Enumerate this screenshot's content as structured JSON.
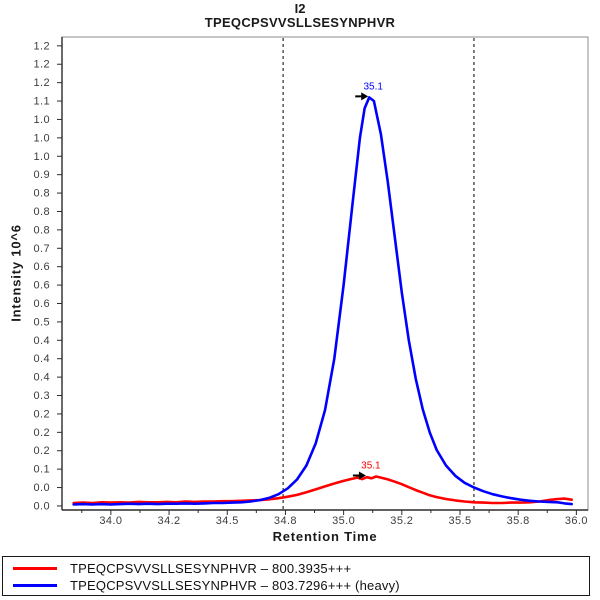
{
  "chart_data": {
    "type": "line",
    "title": "I2",
    "subtitle": "TPEQCPSVVSLLSESYNPHVR",
    "xlabel": "Retention Time",
    "ylabel": "Intensity 10^6",
    "xlim": [
      33.79,
      36.05
    ],
    "ylim": [
      -0.011,
      1.274
    ],
    "grid": false,
    "border_color": "#8c8c8c",
    "axis_color": "#2b2b2b",
    "x_axis": {
      "tick_values": [
        34.0,
        34.25,
        34.5,
        34.75,
        35.0,
        35.25,
        35.5,
        35.75,
        36.0
      ],
      "tick_labels": [
        "34.0",
        "34.2",
        "34.5",
        "34.8",
        "35.0",
        "35.2",
        "35.5",
        "35.8",
        "36.0"
      ],
      "minor_tick_values": [
        33.875,
        34.125,
        34.375,
        34.625,
        34.875,
        35.125,
        35.375,
        35.625,
        35.875
      ]
    },
    "y_axis": {
      "tick_values": [
        1.25,
        1.2,
        1.15,
        1.1,
        1.05,
        1.0,
        0.95,
        0.9,
        0.85,
        0.8,
        0.75,
        0.7,
        0.65,
        0.6,
        0.55,
        0.5,
        0.45,
        0.4,
        0.35,
        0.3,
        0.25,
        0.2,
        0.15,
        0.1,
        0.05,
        0.0
      ],
      "tick_labels": [
        "1.2",
        "1.2",
        "1.2",
        "1.1",
        "1.0",
        "1.0",
        "1.0",
        "0.9",
        "0.8",
        "0.8",
        "0.8",
        "0.7",
        "0.6",
        "0.6",
        "0.6",
        "0.5",
        "0.4",
        "0.4",
        "0.4",
        "0.3",
        "0.2",
        "0.2",
        "0.2",
        "0.1",
        "0.0",
        "0.0"
      ]
    },
    "peak_boundaries": {
      "values": [
        34.74,
        35.56
      ],
      "style": "dashed",
      "color": "#000000"
    },
    "series": [
      {
        "name": "TPEQCPSVVSLLSESYNPHVR – 800.3935+++",
        "key": "light",
        "color": "#ff0000",
        "peak_annotation": {
          "label": "35.1",
          "t": 35.1,
          "v": 0.08,
          "arrow_color": "#000000"
        },
        "points": [
          [
            33.84,
            0.008
          ],
          [
            33.88,
            0.009
          ],
          [
            33.92,
            0.008
          ],
          [
            33.96,
            0.01
          ],
          [
            34.0,
            0.009
          ],
          [
            34.04,
            0.01
          ],
          [
            34.08,
            0.009
          ],
          [
            34.12,
            0.011
          ],
          [
            34.16,
            0.01
          ],
          [
            34.2,
            0.01
          ],
          [
            34.24,
            0.011
          ],
          [
            34.28,
            0.01
          ],
          [
            34.32,
            0.012
          ],
          [
            34.36,
            0.011
          ],
          [
            34.4,
            0.012
          ],
          [
            34.44,
            0.012
          ],
          [
            34.48,
            0.013
          ],
          [
            34.52,
            0.013
          ],
          [
            34.56,
            0.014
          ],
          [
            34.6,
            0.015
          ],
          [
            34.64,
            0.016
          ],
          [
            34.68,
            0.018
          ],
          [
            34.72,
            0.021
          ],
          [
            34.76,
            0.025
          ],
          [
            34.8,
            0.03
          ],
          [
            34.84,
            0.037
          ],
          [
            34.88,
            0.045
          ],
          [
            34.92,
            0.053
          ],
          [
            34.96,
            0.061
          ],
          [
            35.0,
            0.068
          ],
          [
            35.03,
            0.073
          ],
          [
            35.06,
            0.077
          ],
          [
            35.08,
            0.073
          ],
          [
            35.1,
            0.078
          ],
          [
            35.12,
            0.075
          ],
          [
            35.14,
            0.08
          ],
          [
            35.16,
            0.077
          ],
          [
            35.19,
            0.072
          ],
          [
            35.22,
            0.066
          ],
          [
            35.25,
            0.059
          ],
          [
            35.28,
            0.051
          ],
          [
            35.31,
            0.043
          ],
          [
            35.34,
            0.036
          ],
          [
            35.37,
            0.029
          ],
          [
            35.4,
            0.024
          ],
          [
            35.44,
            0.019
          ],
          [
            35.48,
            0.015
          ],
          [
            35.52,
            0.012
          ],
          [
            35.56,
            0.01
          ],
          [
            35.6,
            0.009
          ],
          [
            35.64,
            0.008
          ],
          [
            35.68,
            0.008
          ],
          [
            35.72,
            0.009
          ],
          [
            35.76,
            0.009
          ],
          [
            35.8,
            0.01
          ],
          [
            35.84,
            0.012
          ],
          [
            35.88,
            0.016
          ],
          [
            35.92,
            0.019
          ],
          [
            35.95,
            0.02
          ],
          [
            35.98,
            0.017
          ]
        ]
      },
      {
        "name": "TPEQCPSVVSLLSESYNPHVR – 803.7296+++ (heavy)",
        "key": "heavy",
        "color": "#0000ff",
        "peak_annotation": {
          "label": "35.1",
          "t": 35.11,
          "v": 1.11,
          "arrow_color": "#000000"
        },
        "points": [
          [
            33.84,
            0.004
          ],
          [
            33.88,
            0.005
          ],
          [
            33.92,
            0.004
          ],
          [
            33.96,
            0.005
          ],
          [
            34.0,
            0.004
          ],
          [
            34.04,
            0.005
          ],
          [
            34.08,
            0.006
          ],
          [
            34.12,
            0.005
          ],
          [
            34.16,
            0.006
          ],
          [
            34.2,
            0.005
          ],
          [
            34.24,
            0.006
          ],
          [
            34.28,
            0.006
          ],
          [
            34.32,
            0.007
          ],
          [
            34.36,
            0.006
          ],
          [
            34.4,
            0.007
          ],
          [
            34.44,
            0.008
          ],
          [
            34.48,
            0.008
          ],
          [
            34.52,
            0.009
          ],
          [
            34.56,
            0.01
          ],
          [
            34.6,
            0.012
          ],
          [
            34.64,
            0.016
          ],
          [
            34.68,
            0.022
          ],
          [
            34.72,
            0.032
          ],
          [
            34.76,
            0.048
          ],
          [
            34.8,
            0.072
          ],
          [
            34.84,
            0.11
          ],
          [
            34.88,
            0.17
          ],
          [
            34.92,
            0.26
          ],
          [
            34.96,
            0.4
          ],
          [
            35.0,
            0.6
          ],
          [
            35.04,
            0.83
          ],
          [
            35.07,
            1.0
          ],
          [
            35.09,
            1.08
          ],
          [
            35.11,
            1.11
          ],
          [
            35.13,
            1.1
          ],
          [
            35.16,
            1.01
          ],
          [
            35.19,
            0.88
          ],
          [
            35.22,
            0.73
          ],
          [
            35.25,
            0.58
          ],
          [
            35.28,
            0.45
          ],
          [
            35.31,
            0.345
          ],
          [
            35.34,
            0.262
          ],
          [
            35.37,
            0.2
          ],
          [
            35.4,
            0.152
          ],
          [
            35.44,
            0.11
          ],
          [
            35.48,
            0.082
          ],
          [
            35.52,
            0.063
          ],
          [
            35.56,
            0.05
          ],
          [
            35.6,
            0.04
          ],
          [
            35.64,
            0.032
          ],
          [
            35.68,
            0.026
          ],
          [
            35.72,
            0.021
          ],
          [
            35.76,
            0.017
          ],
          [
            35.8,
            0.014
          ],
          [
            35.84,
            0.012
          ],
          [
            35.88,
            0.011
          ],
          [
            35.92,
            0.01
          ],
          [
            35.95,
            0.007
          ],
          [
            35.98,
            0.005
          ]
        ]
      }
    ]
  },
  "legend": {
    "position": "bottom",
    "border_color": "#1a1a1a"
  }
}
